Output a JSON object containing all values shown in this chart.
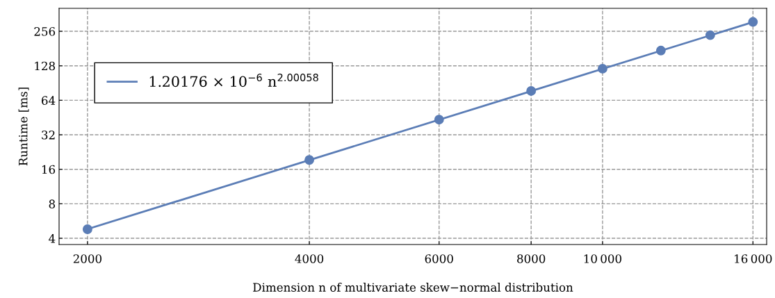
{
  "chart_data": {
    "type": "scatter",
    "xlabel": "Dimension n of multivariate skew−normal distribution",
    "ylabel": "Runtime [ms]",
    "log": "xy",
    "grid": true,
    "legend": "top left",
    "marker": "circle",
    "xlim": [
      1830,
      16700
    ],
    "xticks": [
      2000,
      4000,
      6000,
      8000,
      {
        "value": 10000,
        "label": "10 000"
      },
      {
        "value": 16000,
        "label": "16 000"
      }
    ],
    "ylim": [
      3.53,
      406
    ],
    "yticks": [
      4,
      8,
      16,
      32,
      64,
      128,
      256
    ],
    "series": [
      {
        "type": "line",
        "name": "1.20176 × 10$^{−6}$ n$^{2.00058}$",
        "color": "#5b7db6",
        "x": [
          2000,
          16000
        ],
        "values": [
          4.81,
          308
        ],
        "marker": "none"
      },
      {
        "color": "#5b7db6",
        "x": [
          2000,
          4000,
          6000,
          8000,
          10000,
          12000,
          14000,
          16000
        ],
        "values": [
          4.8,
          19.3,
          43.4,
          77.2,
          120.7,
          173.8,
          236.7,
          309
        ]
      }
    ]
  }
}
